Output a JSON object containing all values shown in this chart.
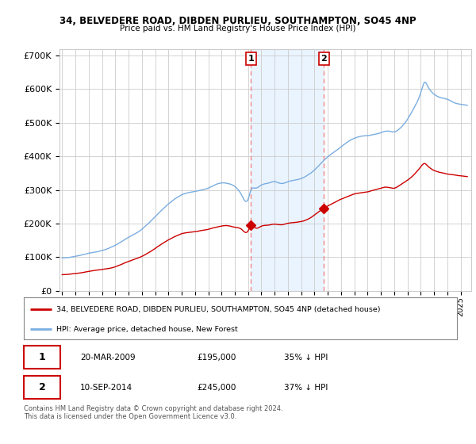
{
  "title1": "34, BELVEDERE ROAD, DIBDEN PURLIEU, SOUTHAMPTON, SO45 4NP",
  "title2": "Price paid vs. HM Land Registry's House Price Index (HPI)",
  "legend_line1": "34, BELVEDERE ROAD, DIBDEN PURLIEU, SOUTHAMPTON, SO45 4NP (detached house)",
  "legend_line2": "HPI: Average price, detached house, New Forest",
  "annotation1_date": "20-MAR-2009",
  "annotation1_price": "£195,000",
  "annotation1_hpi": "35% ↓ HPI",
  "annotation2_date": "10-SEP-2014",
  "annotation2_price": "£245,000",
  "annotation2_hpi": "37% ↓ HPI",
  "footer": "Contains HM Land Registry data © Crown copyright and database right 2024.\nThis data is licensed under the Open Government Licence v3.0.",
  "sale1_year": 2009.22,
  "sale1_value": 195000,
  "sale2_year": 2014.7,
  "sale2_value": 245000,
  "price_line_color": "#cc0000",
  "hpi_line_color": "#7aade0",
  "hpi_fill_color": "#ddeeff",
  "annotation_box_color": "#cc0000",
  "vline_color": "#ee8888",
  "background_color": "#ffffff",
  "grid_color": "#cccccc",
  "ylim": [
    0,
    720000
  ],
  "yticks": [
    0,
    100000,
    200000,
    300000,
    400000,
    500000,
    600000,
    700000
  ],
  "xmin": 1994.8,
  "xmax": 2025.8
}
